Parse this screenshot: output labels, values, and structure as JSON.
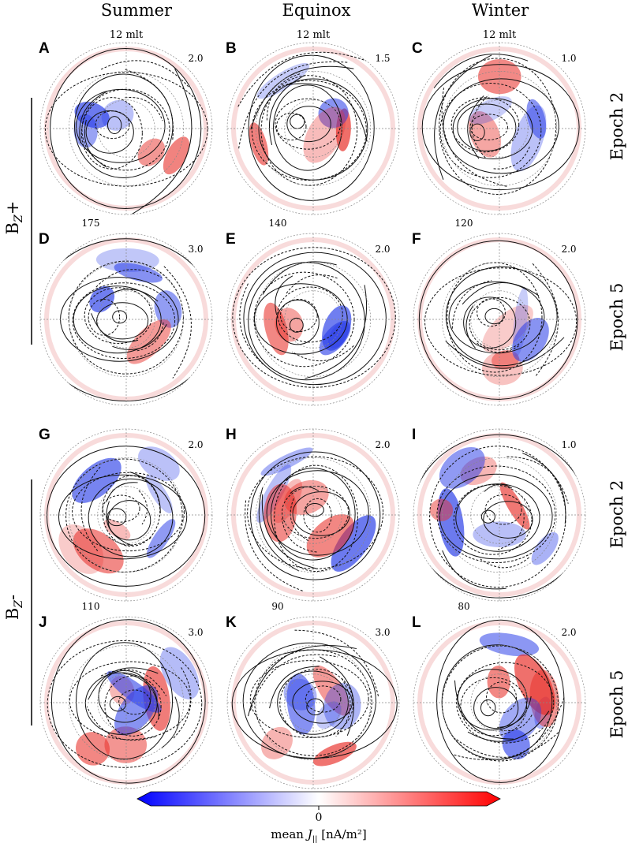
{
  "columns": [
    "Summer",
    "Equinox",
    "Winter"
  ],
  "row_labels": [
    "Epoch 2",
    "Epoch 5",
    "Epoch 2",
    "Epoch 5"
  ],
  "group_labels": [
    "B₂+",
    "B₂-"
  ],
  "group_label_parts": [
    {
      "base": "B",
      "sub": "Z",
      "sign": "+"
    },
    {
      "base": "B",
      "sub": "Z",
      "sign": "-"
    }
  ],
  "mlt_label": "12 mlt",
  "panels": [
    {
      "letter": "A",
      "scale": "2.0",
      "top": "12 mlt",
      "corner": ""
    },
    {
      "letter": "B",
      "scale": "1.5",
      "top": "12 mlt",
      "corner": ""
    },
    {
      "letter": "C",
      "scale": "1.0",
      "top": "12 mlt",
      "corner": ""
    },
    {
      "letter": "D",
      "scale": "3.0",
      "top": "",
      "corner": "175"
    },
    {
      "letter": "E",
      "scale": "2.0",
      "top": "",
      "corner": "140"
    },
    {
      "letter": "F",
      "scale": "2.0",
      "top": "",
      "corner": "120"
    },
    {
      "letter": "G",
      "scale": "2.0",
      "top": "",
      "corner": ""
    },
    {
      "letter": "H",
      "scale": "2.0",
      "top": "",
      "corner": ""
    },
    {
      "letter": "I",
      "scale": "1.0",
      "top": "",
      "corner": ""
    },
    {
      "letter": "J",
      "scale": "3.0",
      "top": "",
      "corner": "110"
    },
    {
      "letter": "K",
      "scale": "3.0",
      "top": "",
      "corner": "90"
    },
    {
      "letter": "L",
      "scale": "2.0",
      "top": "",
      "corner": "80"
    }
  ],
  "colorbar": {
    "tick": "0",
    "label_prefix": "mean ",
    "label_var": "J",
    "label_sub": "||",
    "label_units": " [nA/m²]",
    "colors": [
      "#0000ff",
      "#ffffff",
      "#ff0000"
    ]
  }
}
